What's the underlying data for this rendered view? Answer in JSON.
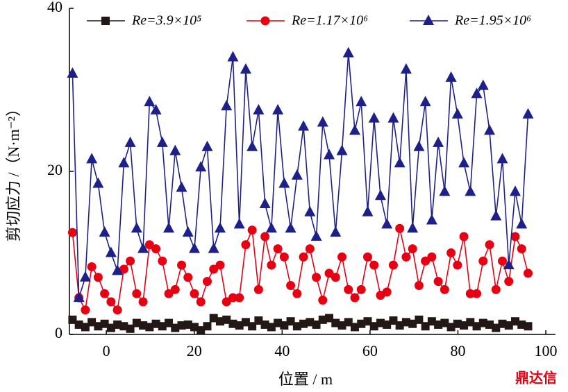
{
  "chart_data": {
    "type": "line",
    "xlabel": "位置 / m",
    "ylabel": "剪切应力 /（N·m⁻²）",
    "watermark": "鼎达信",
    "xlim": [
      -8.4,
      102
    ],
    "xticks": [
      0,
      20,
      40,
      60,
      80,
      100
    ],
    "ylim": [
      0,
      40
    ],
    "yticks": [
      0,
      20,
      40
    ],
    "grid": false,
    "legend": "top",
    "x": [
      -7.7,
      -6.24,
      -4.78,
      -3.32,
      -1.86,
      -0.4,
      1.06,
      2.52,
      3.98,
      5.44,
      6.9,
      8.36,
      9.82,
      11.28,
      12.74,
      14.2,
      15.66,
      17.12,
      18.58,
      20.04,
      21.5,
      22.96,
      24.42,
      25.88,
      27.34,
      28.8,
      30.26,
      31.72,
      33.18,
      34.64,
      36.1,
      37.56,
      39.02,
      40.48,
      41.94,
      43.4,
      44.86,
      46.32,
      47.78,
      49.24,
      50.7,
      52.16,
      53.62,
      55.08,
      56.54,
      58.0,
      59.46,
      60.92,
      62.38,
      63.84,
      65.3,
      66.76,
      68.22,
      69.68,
      71.14,
      72.6,
      74.06,
      75.52,
      76.98,
      78.44,
      79.9,
      81.36,
      82.82,
      84.28,
      85.74,
      87.2,
      88.66,
      90.12,
      91.58,
      93.04,
      94.5,
      95.96
    ],
    "series": [
      {
        "name": "Re=3.9×10⁵",
        "color": "#231815",
        "marker": "square",
        "values": [
          1.8,
          1.2,
          0.9,
          1.5,
          1.0,
          1.3,
          0.8,
          1.2,
          1.0,
          0.7,
          1.4,
          1.1,
          0.9,
          1.3,
          1.0,
          1.4,
          0.8,
          1.1,
          1.2,
          0.9,
          0.5,
          1.0,
          2.0,
          1.6,
          1.8,
          1.3,
          1.1,
          1.5,
          1.0,
          1.7,
          1.2,
          0.9,
          1.4,
          1.1,
          1.6,
          1.0,
          1.3,
          1.5,
          1.2,
          1.8,
          2.0,
          1.4,
          1.1,
          1.5,
          0.9,
          1.3,
          1.6,
          1.0,
          1.4,
          1.2,
          1.7,
          1.1,
          1.5,
          1.3,
          1.8,
          1.0,
          1.6,
          1.2,
          1.4,
          0.9,
          1.3,
          1.1,
          1.5,
          1.0,
          1.4,
          1.2,
          0.8,
          1.3,
          1.1,
          1.6,
          1.2,
          1.0
        ]
      },
      {
        "name": "Re=1.17×10⁶",
        "color": "#e60012",
        "marker": "circle",
        "values": [
          12.5,
          4.5,
          3,
          8.3,
          7,
          5,
          4,
          3,
          8,
          9,
          5,
          4,
          11,
          10.5,
          9,
          5,
          5.5,
          8.5,
          7,
          5,
          4,
          6.5,
          8,
          8.5,
          4,
          4.5,
          4.5,
          11,
          12.8,
          5.5,
          12,
          8.5,
          10.5,
          9.5,
          6,
          5,
          9.5,
          10.5,
          7,
          4.2,
          7.5,
          7,
          9.5,
          5.5,
          4.5,
          5.5,
          9.5,
          8.5,
          4.8,
          5.2,
          8.5,
          13,
          9.5,
          10.5,
          6,
          9,
          9.5,
          6.5,
          5.5,
          10,
          8.5,
          12,
          5,
          5,
          9,
          11,
          5.5,
          9,
          6.5,
          12,
          10.5,
          7.5
        ]
      },
      {
        "name": "Re=1.95×10⁶",
        "color": "#1d2088",
        "marker": "triangle",
        "values": [
          32,
          4.5,
          7,
          21.5,
          18.5,
          12.5,
          10,
          7.8,
          21,
          23.5,
          13,
          10.5,
          28.5,
          27.5,
          23.5,
          13,
          22.5,
          18,
          12.5,
          10.5,
          20.5,
          23,
          10.5,
          13,
          28,
          34,
          13.5,
          32.5,
          23,
          27.5,
          16,
          13,
          27.5,
          18.5,
          13,
          19.5,
          25.5,
          15,
          12,
          26,
          22,
          12.5,
          22.5,
          34.5,
          25,
          28.5,
          15,
          26.5,
          17,
          13.5,
          26.5,
          21,
          32.5,
          13,
          23,
          28.5,
          14,
          23.5,
          17.5,
          31.5,
          27,
          21,
          17.5,
          29.5,
          30.5,
          25,
          14.5,
          21.5,
          8.5,
          17.5,
          13.5,
          27
        ]
      }
    ]
  }
}
